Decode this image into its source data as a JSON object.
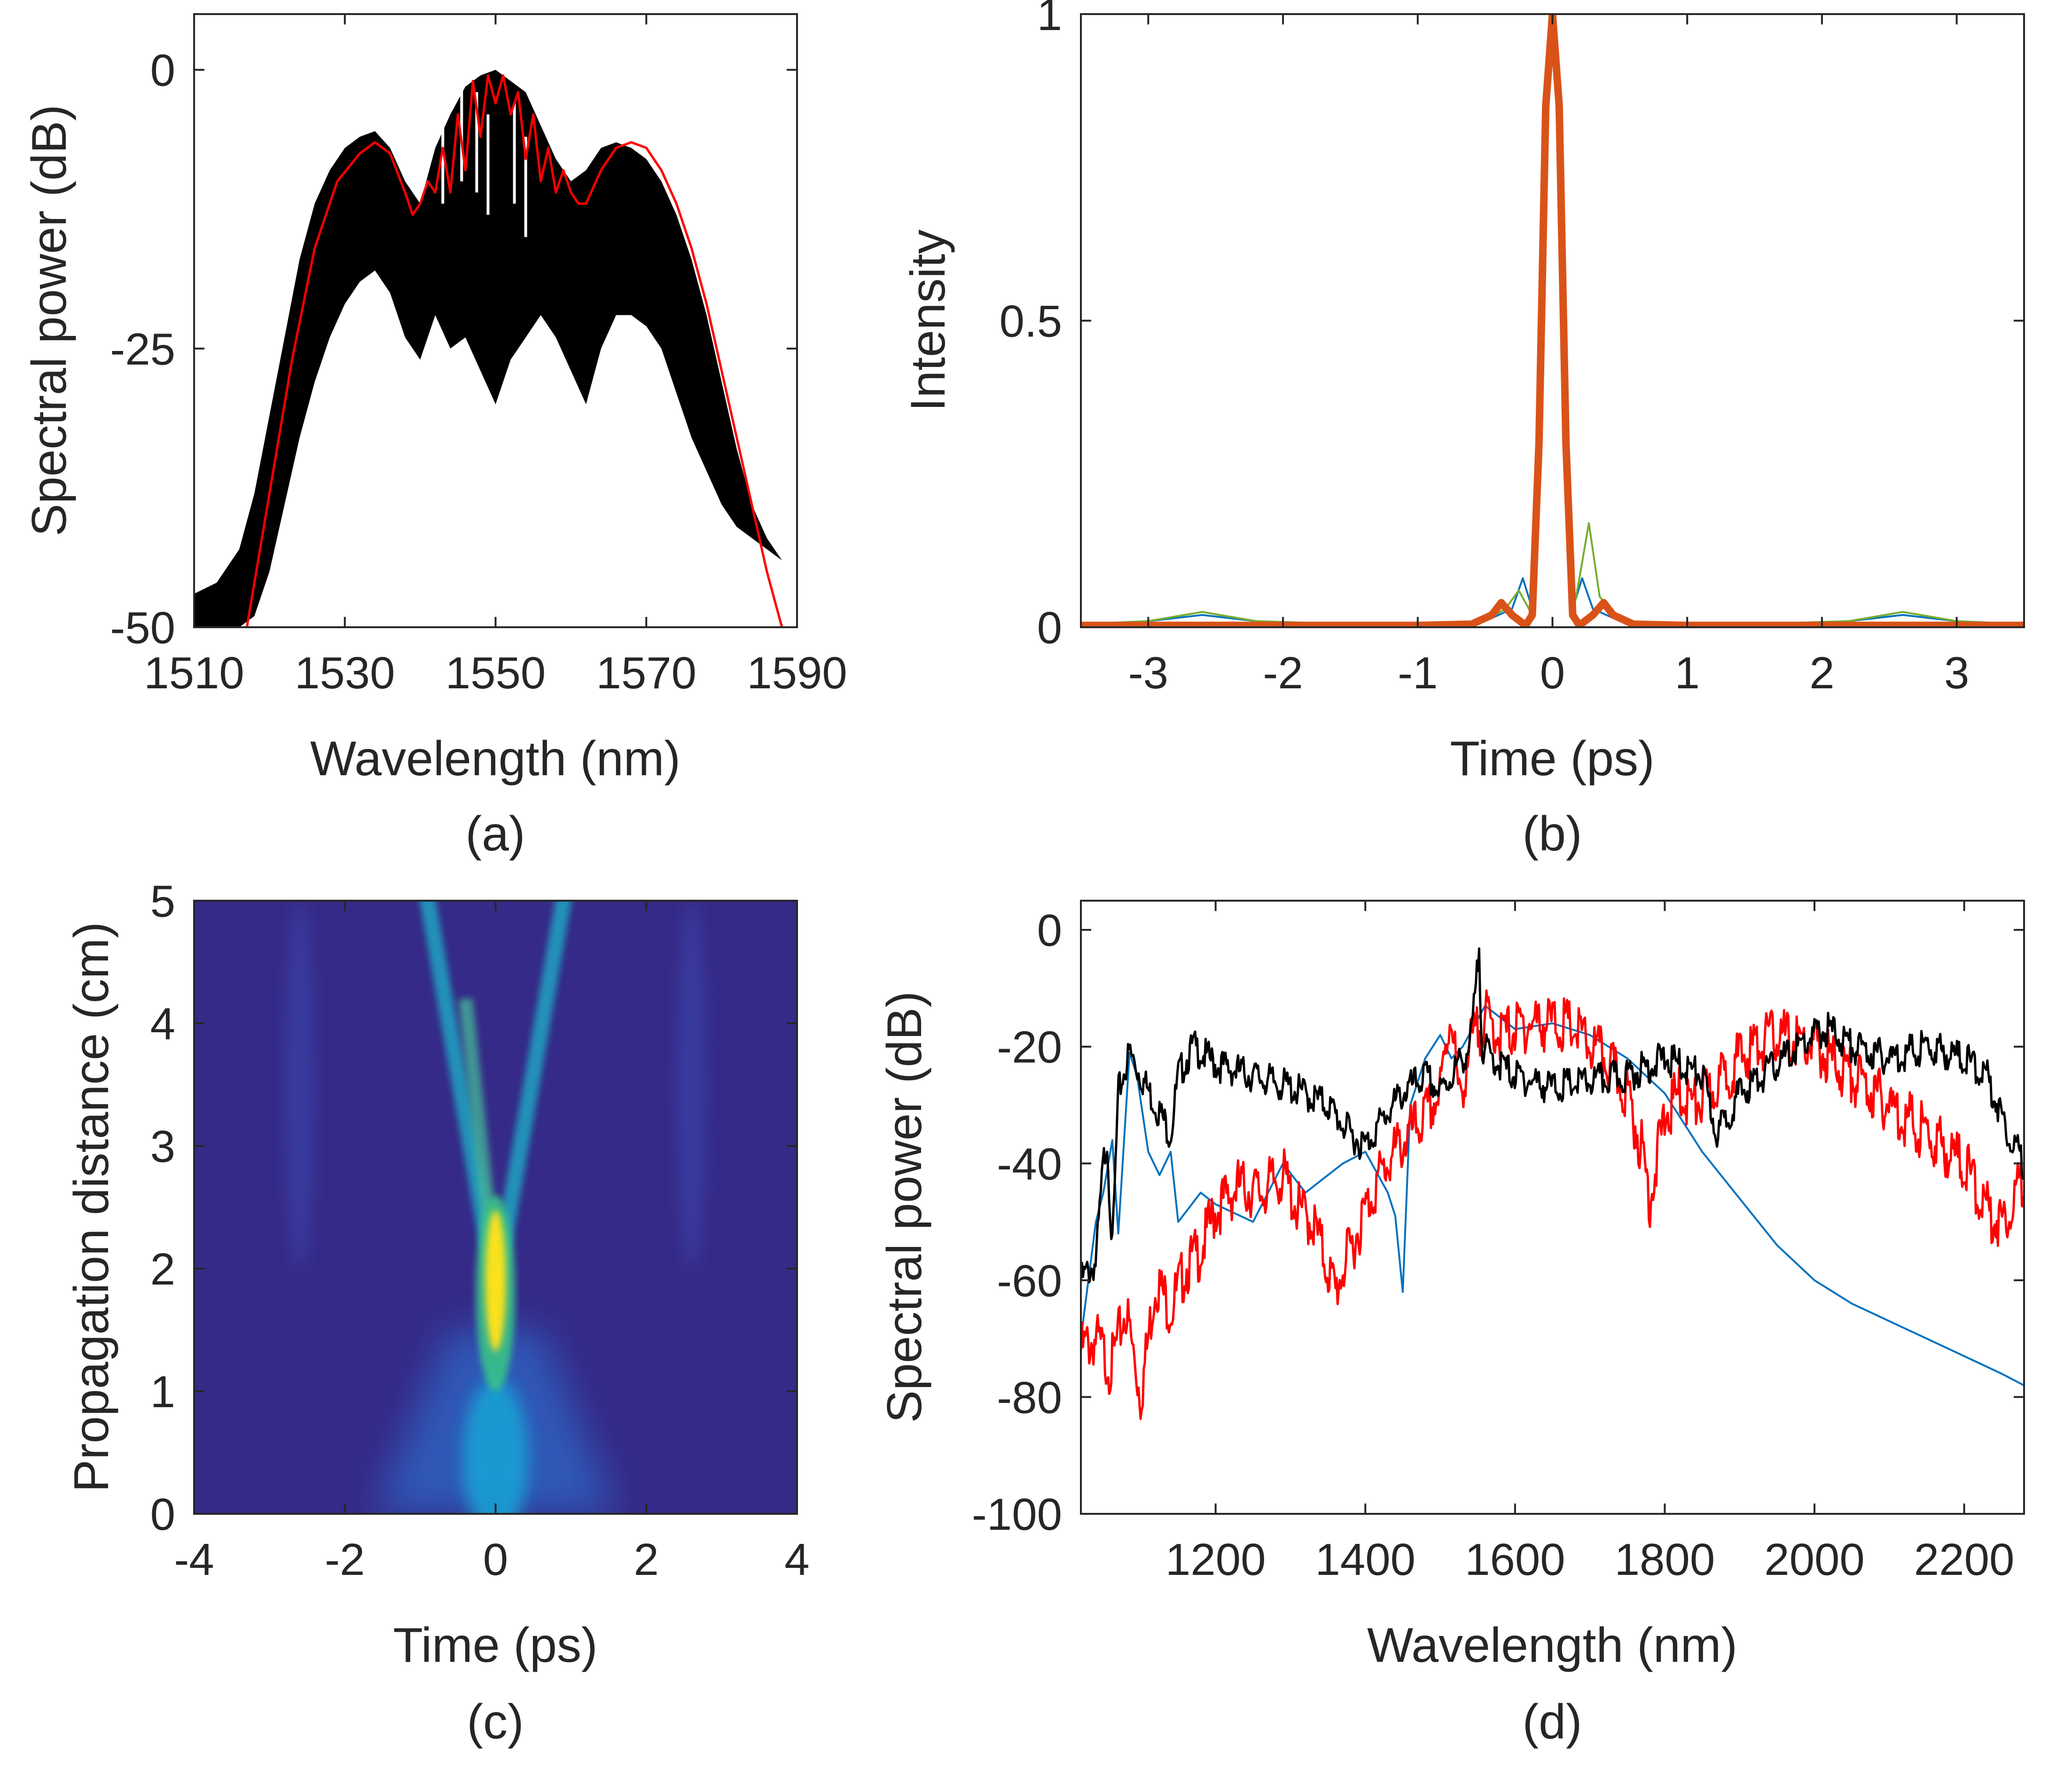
{
  "chart_data": [
    {
      "id": "a",
      "type": "line",
      "panel_label": "(a)",
      "xlabel": "Wavelength (nm)",
      "ylabel": "Spectral power (dB)",
      "xlim": [
        1510,
        1590
      ],
      "ylim": [
        -50,
        5
      ],
      "xticks": [
        1510,
        1530,
        1550,
        1570,
        1590
      ],
      "yticks": [
        -50,
        -25,
        0
      ],
      "grid": false,
      "series": [
        {
          "color": "#000000",
          "style": "dense-oscillating-band",
          "upper": {
            "x": [
              1510,
              1513,
              1516,
              1518,
              1520,
              1522,
              1524,
              1526,
              1528,
              1530,
              1532,
              1534,
              1536,
              1538,
              1540,
              1542,
              1544,
              1546,
              1548,
              1550,
              1552,
              1554,
              1556,
              1558,
              1560,
              1562,
              1564,
              1566,
              1568,
              1570,
              1572,
              1574,
              1576,
              1578,
              1580,
              1582,
              1584,
              1586,
              1588,
              1590
            ],
            "y": [
              -47,
              -46,
              -43,
              -38,
              -31,
              -24,
              -17,
              -12,
              -9,
              -7,
              -6,
              -5.5,
              -7,
              -10,
              -12,
              -7,
              -4,
              -1.5,
              -0.5,
              0,
              -1,
              -2,
              -5,
              -8,
              -10,
              -9,
              -7,
              -6.5,
              -7,
              -8,
              -10,
              -13,
              -17,
              -22,
              -28,
              -34,
              -39,
              -42,
              -44,
              -45
            ]
          },
          "lower": {
            "x": [
              1510,
              1513,
              1516,
              1518,
              1520,
              1522,
              1524,
              1526,
              1528,
              1530,
              1532,
              1534,
              1536,
              1538,
              1540,
              1542,
              1544,
              1546,
              1548,
              1550,
              1552,
              1554,
              1556,
              1558,
              1560,
              1562,
              1564,
              1566,
              1568,
              1570,
              1572,
              1574,
              1576,
              1578,
              1580,
              1582,
              1584,
              1586,
              1588,
              1590
            ],
            "y": [
              -50,
              -50,
              -50,
              -49,
              -45,
              -39,
              -33,
              -28,
              -24,
              -21,
              -19,
              -18,
              -20,
              -24,
              -26,
              -22,
              -25,
              -24,
              -27,
              -30,
              -26,
              -24,
              -22,
              -24,
              -27,
              -30,
              -25,
              -22,
              -22,
              -23,
              -25,
              -29,
              -33,
              -36,
              -39,
              -41,
              -42,
              -43,
              -44,
              -45
            ]
          }
        },
        {
          "color": "#ff0000",
          "x": [
            1517,
            1520,
            1523,
            1526,
            1529,
            1532,
            1534,
            1536,
            1538,
            1539,
            1540,
            1541,
            1542,
            1543,
            1544,
            1545,
            1546,
            1547,
            1548,
            1549,
            1550,
            1551,
            1552,
            1553,
            1554,
            1555,
            1556,
            1557,
            1558,
            1559,
            1560,
            1561,
            1562,
            1564,
            1566,
            1568,
            1570,
            1572,
            1574,
            1576,
            1578,
            1580,
            1582,
            1584,
            1586,
            1588
          ],
          "y": [
            -50,
            -38,
            -26,
            -16,
            -10,
            -7.5,
            -6.5,
            -7.5,
            -11,
            -13,
            -12,
            -10,
            -11,
            -7,
            -11,
            -4,
            -9,
            -1,
            -6,
            -0.5,
            -3,
            -0.5,
            -4,
            -2,
            -8,
            -4,
            -10,
            -7,
            -11,
            -9,
            -11,
            -12,
            -12,
            -9,
            -7,
            -6.5,
            -7,
            -9,
            -12,
            -16,
            -21,
            -27,
            -33,
            -39,
            -45,
            -50
          ]
        }
      ]
    },
    {
      "id": "b",
      "type": "line",
      "panel_label": "(b)",
      "xlabel": "Time (ps)",
      "ylabel": "Intensity",
      "xlim": [
        -3.5,
        3.5
      ],
      "ylim": [
        0,
        1
      ],
      "xticks": [
        -3,
        -2,
        -1,
        0,
        1,
        2,
        3
      ],
      "yticks": [
        0,
        0.5,
        1
      ],
      "grid": false,
      "series": [
        {
          "color": "#0072bd",
          "width": 4,
          "x": [
            -3.5,
            -3.0,
            -2.6,
            -2.2,
            -1.5,
            -1.0,
            -0.5,
            -0.3,
            -0.22,
            -0.15,
            -0.1,
            -0.05,
            0,
            0.05,
            0.1,
            0.15,
            0.22,
            0.3,
            0.5,
            1.0,
            1.5,
            2.2,
            2.6,
            3.0,
            3.5
          ],
          "y": [
            0.005,
            0.01,
            0.02,
            0.01,
            0.005,
            0.005,
            0.01,
            0.03,
            0.08,
            0.03,
            0.3,
            0.85,
            1.0,
            0.85,
            0.3,
            0.03,
            0.08,
            0.03,
            0.01,
            0.005,
            0.005,
            0.01,
            0.02,
            0.01,
            0.005
          ]
        },
        {
          "color": "#77ac30",
          "width": 4,
          "x": [
            -3.5,
            -3.0,
            -2.6,
            -2.2,
            -1.5,
            -1.0,
            -0.5,
            -0.35,
            -0.25,
            -0.15,
            -0.1,
            -0.05,
            0,
            0.05,
            0.1,
            0.15,
            0.2,
            0.27,
            0.35,
            0.5,
            1.0,
            1.5,
            2.2,
            2.6,
            3.0,
            3.5
          ],
          "y": [
            0.005,
            0.01,
            0.025,
            0.01,
            0.005,
            0.005,
            0.01,
            0.03,
            0.06,
            0.02,
            0.3,
            0.85,
            1.0,
            0.85,
            0.3,
            0.02,
            0.08,
            0.17,
            0.05,
            0.01,
            0.005,
            0.005,
            0.01,
            0.025,
            0.01,
            0.005
          ]
        },
        {
          "color": "#d95319",
          "width": 16,
          "x": [
            -3.5,
            -2.0,
            -1.0,
            -0.6,
            -0.45,
            -0.38,
            -0.3,
            -0.2,
            -0.15,
            -0.1,
            -0.05,
            0,
            0.05,
            0.1,
            0.15,
            0.2,
            0.3,
            0.38,
            0.45,
            0.6,
            1.0,
            2.0,
            3.5
          ],
          "y": [
            0.003,
            0.003,
            0.003,
            0.005,
            0.02,
            0.04,
            0.02,
            0.003,
            0.02,
            0.3,
            0.85,
            1.0,
            0.85,
            0.3,
            0.02,
            0.003,
            0.02,
            0.04,
            0.02,
            0.005,
            0.003,
            0.003,
            0.003
          ]
        }
      ]
    },
    {
      "id": "c",
      "type": "heatmap",
      "panel_label": "(c)",
      "xlabel": "Time (ps)",
      "ylabel": "Propagation distance (cm)",
      "xlim": [
        -4,
        4
      ],
      "ylim": [
        0,
        5
      ],
      "xticks": [
        -4,
        -2,
        0,
        2,
        4
      ],
      "yticks": [
        0,
        1,
        2,
        3,
        4,
        5
      ],
      "colormap": "parula",
      "background_color": "#352a87",
      "features": [
        {
          "name": "central-peak",
          "t": 0.0,
          "z_from": 1.0,
          "z_to": 2.6,
          "peak_z": 1.9,
          "max_intensity": 1.0
        },
        {
          "name": "left-branch",
          "t_start": -0.05,
          "t_end": -0.9,
          "z_from": 2.0,
          "z_to": 5.0,
          "intensity": 0.4
        },
        {
          "name": "right-branch",
          "t_start": 0.05,
          "t_end": 0.9,
          "z_from": 2.0,
          "z_to": 5.0,
          "intensity": 0.35
        },
        {
          "name": "input-pulse",
          "t": 0.0,
          "z_from": 0.0,
          "z_to": 1.0,
          "intensity": 0.3
        },
        {
          "name": "side-band-left",
          "t": -2.6,
          "z_from": 2.0,
          "z_to": 5.0,
          "intensity": 0.08
        },
        {
          "name": "side-band-right",
          "t": 2.6,
          "z_from": 2.0,
          "z_to": 5.0,
          "intensity": 0.08
        }
      ]
    },
    {
      "id": "d",
      "type": "line",
      "panel_label": "(d)",
      "xlabel": "Wavelength (nm)",
      "ylabel": "Spectral power (dB)",
      "xlim": [
        1020,
        2280
      ],
      "ylim": [
        -100,
        5
      ],
      "xticks": [
        1200,
        1400,
        1600,
        1800,
        2000,
        2200
      ],
      "yticks": [
        -100,
        -80,
        -60,
        -40,
        -20,
        0
      ],
      "grid": false,
      "series": [
        {
          "color": "#000000",
          "x": [
            1020,
            1040,
            1050,
            1055,
            1062,
            1070,
            1085,
            1100,
            1120,
            1140,
            1150,
            1170,
            1200,
            1250,
            1300,
            1350,
            1380,
            1400,
            1420,
            1450,
            1480,
            1500,
            1520,
            1540,
            1548,
            1552,
            1556,
            1570,
            1600,
            1650,
            1700,
            1750,
            1800,
            1850,
            1870,
            1900,
            1950,
            2000,
            2020,
            2050,
            2100,
            2150,
            2200,
            2230,
            2260,
            2280
          ],
          "y": [
            -60,
            -57,
            -40,
            -36,
            -55,
            -28,
            -21,
            -25,
            -30,
            -35,
            -25,
            -20,
            -23,
            -25,
            -27,
            -30,
            -35,
            -37,
            -33,
            -28,
            -25,
            -28,
            -24,
            -20,
            -10,
            -3,
            -20,
            -22,
            -25,
            -27,
            -26,
            -25,
            -22,
            -25,
            -35,
            -28,
            -23,
            -18,
            -17,
            -20,
            -22,
            -20,
            -22,
            -25,
            -35,
            -40
          ]
        },
        {
          "color": "#0072bd",
          "x": [
            1020,
            1040,
            1050,
            1062,
            1070,
            1085,
            1095,
            1110,
            1125,
            1140,
            1150,
            1180,
            1200,
            1250,
            1290,
            1320,
            1350,
            1370,
            1400,
            1430,
            1440,
            1450,
            1460,
            1480,
            1500,
            1515,
            1530,
            1560,
            1600,
            1650,
            1700,
            1750,
            1800,
            1850,
            1900,
            1950,
            2000,
            2050,
            2100,
            2150,
            2200,
            2250,
            2280
          ],
          "y": [
            -70,
            -50,
            -45,
            -36,
            -52,
            -21,
            -25,
            -38,
            -42,
            -38,
            -50,
            -45,
            -47,
            -50,
            -40,
            -45,
            -42,
            -40,
            -38,
            -45,
            -49,
            -62,
            -30,
            -22,
            -18,
            -22,
            -20,
            -13,
            -17,
            -16,
            -18,
            -22,
            -28,
            -38,
            -46,
            -54,
            -60,
            -64,
            -67,
            -70,
            -73,
            -76,
            -78
          ]
        },
        {
          "color": "#ff0000",
          "x": [
            1020,
            1040,
            1060,
            1080,
            1100,
            1120,
            1140,
            1160,
            1180,
            1200,
            1230,
            1260,
            1290,
            1310,
            1330,
            1350,
            1360,
            1370,
            1380,
            1400,
            1420,
            1440,
            1460,
            1480,
            1500,
            1515,
            1525,
            1540,
            1560,
            1580,
            1600,
            1620,
            1650,
            1680,
            1700,
            1720,
            1750,
            1770,
            1780,
            1800,
            1820,
            1840,
            1860,
            1880,
            1900,
            1920,
            1950,
            1970,
            2000,
            2050,
            2100,
            2150,
            2200,
            2230,
            2250,
            2270,
            2280
          ],
          "y": [
            -72,
            -70,
            -75,
            -65,
            -80,
            -60,
            -65,
            -58,
            -55,
            -48,
            -44,
            -45,
            -42,
            -48,
            -50,
            -58,
            -62,
            -58,
            -55,
            -48,
            -42,
            -38,
            -35,
            -32,
            -28,
            -13,
            -30,
            -20,
            -15,
            -18,
            -17,
            -16,
            -16,
            -17,
            -20,
            -22,
            -28,
            -38,
            -46,
            -32,
            -28,
            -30,
            -28,
            -25,
            -22,
            -20,
            -18,
            -19,
            -20,
            -25,
            -30,
            -35,
            -40,
            -48,
            -50,
            -45,
            -42
          ]
        }
      ]
    }
  ]
}
